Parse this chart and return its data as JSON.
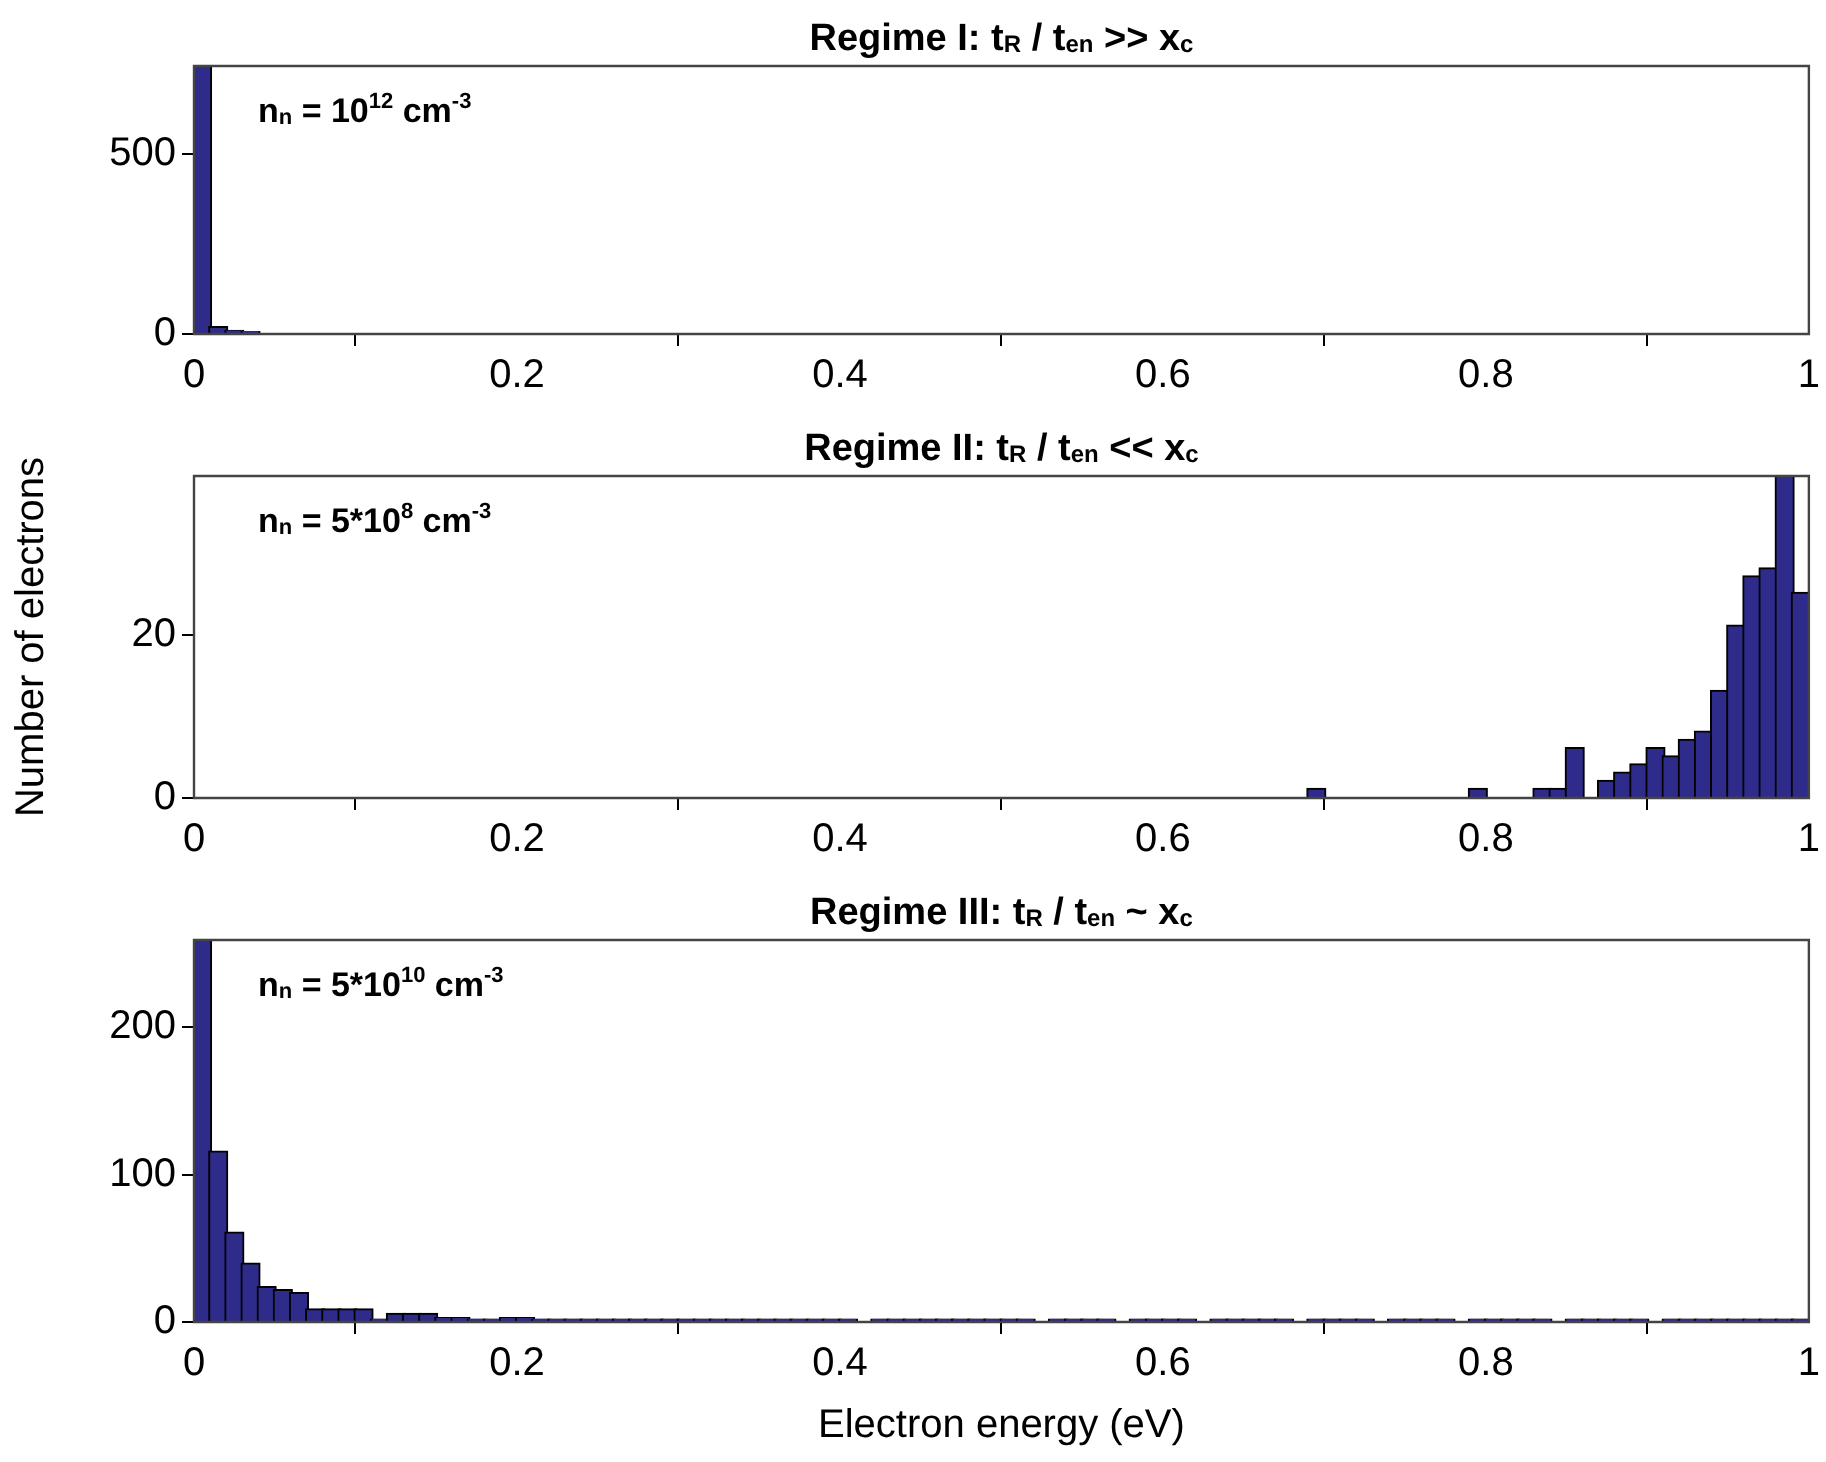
{
  "chart_data": [
    {
      "type": "histogram",
      "title": "Regime I: t$_{R}$ / t$_{en}$ >> x$_{c}$",
      "annotations": [
        "n$_{n}$ = 10$^{12}$ cm$^{-3}$"
      ],
      "color": "#2f2b8a",
      "bins": [
        0,
        0.01,
        0.02,
        0.03,
        0.04,
        0.05,
        0.06,
        0.07,
        0.08,
        0.09,
        0.1,
        0.11,
        0.12,
        0.13,
        0.14,
        0.15,
        0.16,
        0.17,
        0.18,
        0.19,
        0.2,
        0.21,
        0.22,
        0.23,
        0.24,
        0.25,
        0.26,
        0.27,
        0.28,
        0.29,
        0.3,
        0.31,
        0.32,
        0.33,
        0.34,
        0.35,
        0.36,
        0.37,
        0.38,
        0.39,
        0.4,
        0.41,
        0.42,
        0.43,
        0.44,
        0.45,
        0.46,
        0.47,
        0.48,
        0.49,
        0.5,
        0.51,
        0.52,
        0.53,
        0.54,
        0.55,
        0.56,
        0.57,
        0.58,
        0.59,
        0.6,
        0.61,
        0.62,
        0.63,
        0.64,
        0.65,
        0.66,
        0.67,
        0.68,
        0.69,
        0.7,
        0.71,
        0.72,
        0.73,
        0.74,
        0.75,
        0.76,
        0.77,
        0.78,
        0.79,
        0.8,
        0.81,
        0.82,
        0.83,
        0.84,
        0.85,
        0.86,
        0.87,
        0.88,
        0.89,
        0.9,
        0.91,
        0.92,
        0.93,
        0.94,
        0.95,
        0.96,
        0.97,
        0.98,
        0.99,
        1
      ],
      "values": [
        744,
        17,
        6,
        3,
        2,
        2,
        1,
        1,
        0,
        0,
        0,
        0,
        0,
        0,
        0,
        0,
        0,
        0,
        0,
        0,
        0,
        0,
        0,
        0,
        0,
        0,
        0,
        0,
        0,
        0,
        0,
        0,
        0,
        0,
        0,
        0,
        0,
        0,
        0,
        0,
        0,
        0,
        0,
        0,
        0,
        0,
        0,
        0,
        0,
        0,
        0,
        0,
        0,
        0,
        0,
        0,
        0,
        0,
        0,
        0,
        0,
        0,
        0,
        0,
        0,
        0,
        0,
        0,
        0,
        0,
        0,
        0,
        0,
        0,
        0,
        0,
        0,
        0,
        0,
        0,
        0,
        0,
        0,
        0,
        0,
        0,
        0,
        0,
        0,
        0,
        0,
        0,
        0,
        0,
        0,
        0,
        0,
        0,
        0,
        0
      ],
      "xlim": [
        0,
        1
      ],
      "xticks": [
        0,
        0.2,
        0.4,
        0.6,
        0.8,
        1
      ],
      "ylim": [
        0,
        744
      ],
      "yticks": [
        0,
        500
      ]
    },
    {
      "type": "histogram",
      "title": "Regime II: t$_{R}$ / t$_{en}$ << x$_{c}$",
      "ylabel": "Number of electrons",
      "annotations": [
        "n$_{n}$ = 5*10$^{8}$ cm$^{-3}$"
      ],
      "color": "#2f2b8a",
      "bins": [
        0,
        0.01,
        0.02,
        0.03,
        0.04,
        0.05,
        0.06,
        0.07,
        0.08,
        0.09,
        0.1,
        0.11,
        0.12,
        0.13,
        0.14,
        0.15,
        0.16,
        0.17,
        0.18,
        0.19,
        0.2,
        0.21,
        0.22,
        0.23,
        0.24,
        0.25,
        0.26,
        0.27,
        0.28,
        0.29,
        0.3,
        0.31,
        0.32,
        0.33,
        0.34,
        0.35,
        0.36,
        0.37,
        0.38,
        0.39,
        0.4,
        0.41,
        0.42,
        0.43,
        0.44,
        0.45,
        0.46,
        0.47,
        0.48,
        0.49,
        0.5,
        0.51,
        0.52,
        0.53,
        0.54,
        0.55,
        0.56,
        0.57,
        0.58,
        0.59,
        0.6,
        0.61,
        0.62,
        0.63,
        0.64,
        0.65,
        0.66,
        0.67,
        0.68,
        0.69,
        0.7,
        0.71,
        0.72,
        0.73,
        0.74,
        0.75,
        0.76,
        0.77,
        0.78,
        0.79,
        0.8,
        0.81,
        0.82,
        0.83,
        0.84,
        0.85,
        0.86,
        0.87,
        0.88,
        0.89,
        0.9,
        0.91,
        0.92,
        0.93,
        0.94,
        0.95,
        0.96,
        0.97,
        0.98,
        0.99,
        1
      ],
      "values": [
        0,
        0,
        0,
        0,
        0,
        0,
        0,
        0,
        0,
        0,
        0,
        0,
        0,
        0,
        0,
        0,
        0,
        0,
        0,
        0,
        0,
        0,
        0,
        0,
        0,
        0,
        0,
        0,
        0,
        0,
        0,
        0,
        0,
        0,
        0,
        0,
        0,
        0,
        0,
        0,
        0,
        0,
        0,
        0,
        0,
        0,
        0,
        0,
        0,
        0,
        0,
        0,
        0,
        0,
        0,
        0,
        0,
        0,
        0,
        0,
        0,
        0,
        0,
        0,
        0,
        0,
        0,
        0,
        0,
        1,
        0,
        0,
        0,
        0,
        0,
        0,
        0,
        0,
        0,
        1,
        0,
        0,
        0,
        1,
        1,
        6,
        0,
        2,
        3,
        4,
        6,
        5,
        7,
        8,
        13,
        21,
        27,
        28,
        39.4,
        25
      ],
      "xlim": [
        0,
        1
      ],
      "xticks": [
        0,
        0.2,
        0.4,
        0.6,
        0.8,
        1
      ],
      "ylim": [
        0,
        39.4
      ],
      "yticks": [
        0,
        20
      ]
    },
    {
      "type": "histogram",
      "title": "Regime III: t$_{R}$ / t$_{en}$ ~ x$_{c}$",
      "xlabel": "Electron energy (eV)",
      "annotations": [
        "n$_{n}$ = 5*10$^{10}$ cm$^{-3}$"
      ],
      "color": "#2f2b8a",
      "bins": [
        0,
        0.01,
        0.02,
        0.03,
        0.04,
        0.05,
        0.06,
        0.07,
        0.08,
        0.09,
        0.1,
        0.11,
        0.12,
        0.13,
        0.14,
        0.15,
        0.16,
        0.17,
        0.18,
        0.19,
        0.2,
        0.21,
        0.22,
        0.23,
        0.24,
        0.25,
        0.26,
        0.27,
        0.28,
        0.29,
        0.3,
        0.31,
        0.32,
        0.33,
        0.34,
        0.35,
        0.36,
        0.37,
        0.38,
        0.39,
        0.4,
        0.41,
        0.42,
        0.43,
        0.44,
        0.45,
        0.46,
        0.47,
        0.48,
        0.49,
        0.5,
        0.51,
        0.52,
        0.53,
        0.54,
        0.55,
        0.56,
        0.57,
        0.58,
        0.59,
        0.6,
        0.61,
        0.62,
        0.63,
        0.64,
        0.65,
        0.66,
        0.67,
        0.68,
        0.69,
        0.7,
        0.71,
        0.72,
        0.73,
        0.74,
        0.75,
        0.76,
        0.77,
        0.78,
        0.79,
        0.8,
        0.81,
        0.82,
        0.83,
        0.84,
        0.85,
        0.86,
        0.87,
        0.88,
        0.89,
        0.9,
        0.91,
        0.92,
        0.93,
        0.94,
        0.95,
        0.96,
        0.97,
        0.98,
        0.99,
        1
      ],
      "values": [
        259,
        115,
        60,
        39,
        23,
        21,
        19,
        8,
        8,
        8,
        8,
        1,
        5,
        5,
        5,
        2,
        2,
        1,
        1,
        2,
        2,
        1,
        1,
        1,
        1,
        1,
        1,
        1,
        1,
        1,
        1,
        1,
        1,
        1,
        1,
        1,
        1,
        1,
        1,
        1,
        1,
        0,
        1,
        1,
        1,
        1,
        1,
        1,
        1,
        1,
        1,
        1,
        0,
        1,
        1,
        1,
        1,
        0,
        1,
        1,
        1,
        1,
        0,
        1,
        1,
        1,
        1,
        1,
        0,
        1,
        1,
        1,
        1,
        0,
        1,
        1,
        1,
        1,
        0,
        1,
        1,
        1,
        1,
        1,
        0,
        1,
        1,
        1,
        1,
        1,
        0,
        1,
        1,
        1,
        1,
        1,
        1,
        1,
        1,
        1
      ],
      "xlim": [
        0,
        1
      ],
      "xticks": [
        0,
        0.2,
        0.4,
        0.6,
        0.8,
        1
      ],
      "ylim": [
        0,
        259
      ],
      "yticks": [
        0,
        100,
        200
      ]
    }
  ]
}
